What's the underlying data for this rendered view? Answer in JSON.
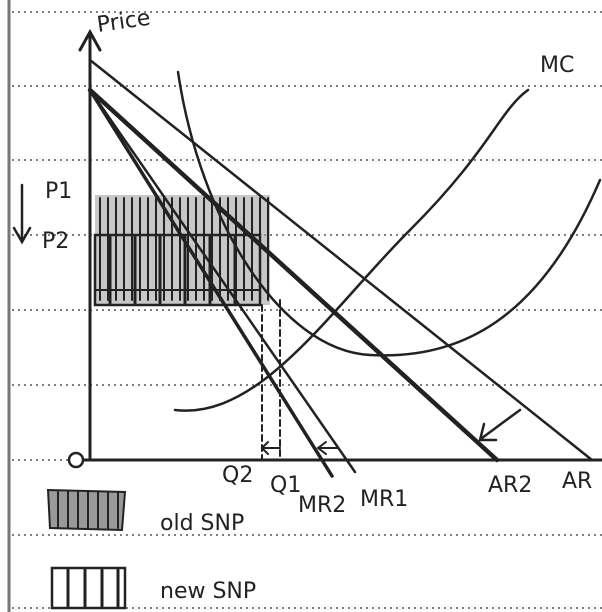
{
  "axis": {
    "y_label": "Price"
  },
  "curves": {
    "mc": "MC",
    "ar1": "AR",
    "ar2": "AR2",
    "mr1": "MR1",
    "mr2": "MR2"
  },
  "prices": [
    "P1",
    "P2"
  ],
  "quantities": [
    "Q2",
    "Q1"
  ],
  "legend": [
    {
      "label": "old SNP"
    },
    {
      "label": "new SNP"
    }
  ]
}
